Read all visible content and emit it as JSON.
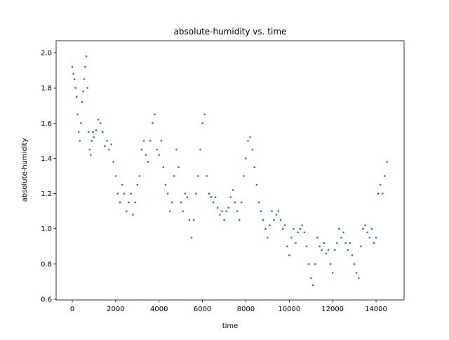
{
  "chart_data": {
    "type": "scatter",
    "title": "absolute-humidity vs. time",
    "x_label": "time",
    "y_label": "absolute-humidity",
    "series": [
      {
        "name": "absolute-humidity",
        "color": "#1f77b4",
        "x": [
          0,
          50,
          100,
          150,
          200,
          250,
          300,
          350,
          400,
          450,
          500,
          550,
          600,
          650,
          700,
          750,
          800,
          850,
          900,
          950,
          1000,
          1100,
          1200,
          1300,
          1400,
          1500,
          1600,
          1700,
          1800,
          1900,
          2000,
          2100,
          2200,
          2300,
          2400,
          2500,
          2600,
          2700,
          2800,
          2900,
          3000,
          3100,
          3200,
          3300,
          3400,
          3500,
          3600,
          3700,
          3800,
          3900,
          4000,
          4100,
          4200,
          4300,
          4400,
          4500,
          4600,
          4700,
          4800,
          4900,
          5000,
          5100,
          5200,
          5300,
          5400,
          5500,
          5600,
          5700,
          5800,
          5900,
          6000,
          6100,
          6200,
          6300,
          6400,
          6500,
          6600,
          6700,
          6800,
          6900,
          7000,
          7100,
          7200,
          7300,
          7400,
          7500,
          7600,
          7700,
          7800,
          7900,
          8000,
          8100,
          8200,
          8300,
          8400,
          8500,
          8600,
          8700,
          8800,
          8900,
          9000,
          9100,
          9200,
          9300,
          9400,
          9500,
          9600,
          9700,
          9800,
          9900,
          10000,
          10100,
          10200,
          10300,
          10400,
          10500,
          10600,
          10700,
          10800,
          10900,
          11000,
          11100,
          11200,
          11300,
          11400,
          11500,
          11600,
          11700,
          11800,
          11900,
          12000,
          12100,
          12200,
          12300,
          12400,
          12500,
          12600,
          12700,
          12800,
          12900,
          13000,
          13100,
          13200,
          13300,
          13400,
          13500,
          13600,
          13700,
          13800,
          13900,
          14000,
          14100,
          14200,
          14300,
          14400,
          14500
        ],
        "values": [
          1.92,
          1.88,
          1.85,
          1.8,
          1.75,
          1.65,
          1.55,
          1.5,
          1.6,
          1.72,
          1.78,
          1.85,
          1.92,
          1.98,
          1.8,
          1.55,
          1.45,
          1.42,
          1.5,
          1.55,
          1.52,
          1.56,
          1.62,
          1.6,
          1.55,
          1.47,
          1.5,
          1.45,
          1.48,
          1.38,
          1.3,
          1.2,
          1.15,
          1.25,
          1.2,
          1.1,
          1.15,
          1.2,
          1.08,
          1.15,
          1.25,
          1.3,
          1.45,
          1.5,
          1.42,
          1.38,
          1.5,
          1.6,
          1.65,
          1.45,
          1.42,
          1.5,
          1.35,
          1.25,
          1.2,
          1.1,
          1.15,
          1.3,
          1.45,
          1.35,
          1.15,
          1.1,
          1.2,
          1.18,
          1.05,
          0.95,
          1.05,
          1.2,
          1.3,
          1.45,
          1.6,
          1.65,
          1.3,
          1.2,
          1.18,
          1.15,
          1.18,
          1.12,
          1.08,
          1.1,
          1.05,
          1.1,
          1.12,
          1.18,
          1.22,
          1.15,
          1.1,
          1.05,
          1.15,
          1.3,
          1.4,
          1.5,
          1.52,
          1.45,
          1.35,
          1.25,
          1.15,
          1.1,
          1.05,
          1.0,
          0.95,
          1.02,
          1.1,
          1.05,
          1.08,
          1.1,
          1.05,
          1.0,
          1.02,
          0.9,
          0.85,
          0.95,
          1.0,
          0.92,
          0.98,
          1.0,
          1.02,
          0.98,
          0.9,
          0.8,
          0.72,
          0.68,
          0.8,
          0.95,
          0.9,
          0.88,
          0.92,
          0.86,
          0.88,
          0.8,
          0.75,
          0.88,
          0.92,
          1.0,
          0.95,
          0.98,
          0.92,
          0.88,
          0.92,
          0.85,
          0.8,
          0.75,
          0.72,
          0.9,
          1.0,
          1.02,
          0.98,
          0.95,
          1.0,
          0.92,
          0.95,
          1.2,
          1.25,
          1.2,
          1.3,
          1.38
        ]
      }
    ],
    "xlim": [
      -744,
      15293
    ],
    "ylim": [
      0.596,
      2.068
    ],
    "xticks": [
      0,
      2000,
      4000,
      6000,
      8000,
      10000,
      12000,
      14000
    ],
    "yticks": [
      0.6,
      0.8,
      {
        "value": 1.0,
        "label": "1.0"
      },
      1.2,
      1.4,
      1.6,
      1.8,
      {
        "value": 2.0,
        "label": "2.0"
      }
    ]
  }
}
